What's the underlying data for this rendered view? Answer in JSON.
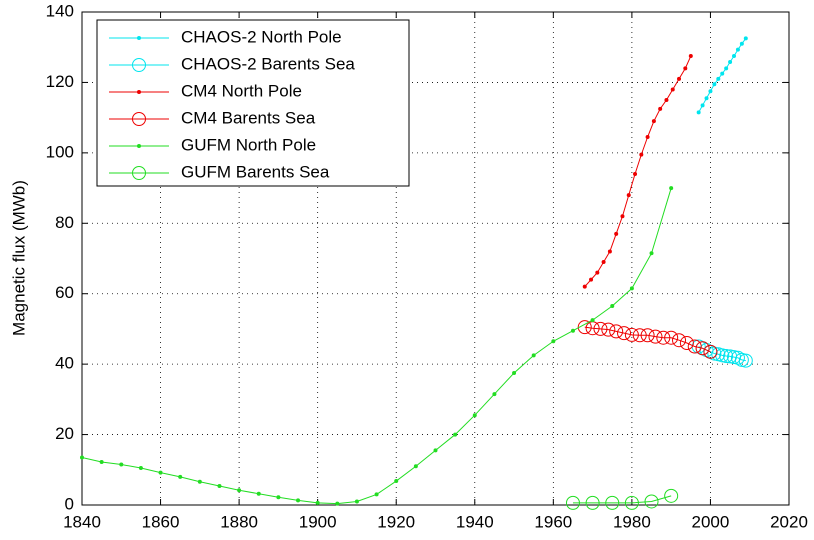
{
  "chart_data": {
    "type": "line",
    "ylabel": "Magnetic flux (MWb)",
    "xlim": [
      1840,
      2020
    ],
    "ylim": [
      0,
      140
    ],
    "xticks": [
      1840,
      1860,
      1880,
      1900,
      1920,
      1940,
      1960,
      1980,
      2000,
      2020
    ],
    "yticks": [
      0,
      20,
      40,
      60,
      80,
      100,
      120,
      140
    ],
    "grid": true,
    "legend": "upper left",
    "series": [
      {
        "name": "CHAOS-2 North Pole",
        "color": "#00e5ee",
        "marker": "dot",
        "x": [
          1997,
          1998,
          1999,
          2000,
          2001,
          2002,
          2003,
          2004,
          2005,
          2006,
          2007,
          2008,
          2009
        ],
        "values": [
          111.5,
          113.5,
          115.5,
          117.5,
          119.5,
          121,
          122.5,
          124,
          125.8,
          127.5,
          129.3,
          131,
          132.5
        ]
      },
      {
        "name": "CHAOS-2 Barents Sea",
        "color": "#00e5ee",
        "marker": "circle",
        "x": [
          1997,
          1998,
          1999,
          2000,
          2001,
          2002,
          2003,
          2004,
          2005,
          2006,
          2007,
          2008,
          2009
        ],
        "values": [
          45,
          44.5,
          44,
          43.5,
          43,
          42.8,
          42.5,
          42.3,
          42.2,
          42,
          41.8,
          41.2,
          41
        ]
      },
      {
        "name": "CM4 North Pole",
        "color": "#ee0000",
        "marker": "dot",
        "x": [
          1968,
          1969.6,
          1971.2,
          1972.8,
          1974.4,
          1976,
          1977.6,
          1979.2,
          1980.8,
          1982.4,
          1984,
          1985.6,
          1987.2,
          1988.8,
          1990.4,
          1992,
          1993.6,
          1995
        ],
        "values": [
          62,
          64,
          66,
          69,
          72,
          77,
          82,
          88,
          94,
          99.5,
          104.5,
          109,
          112.5,
          115,
          118,
          121,
          124,
          127.5
        ]
      },
      {
        "name": "CM4 Barents Sea",
        "color": "#ee0000",
        "marker": "circle",
        "x": [
          1968,
          1970,
          1972,
          1974,
          1976,
          1978,
          1980,
          1982,
          1984,
          1986,
          1988,
          1990,
          1992,
          1994,
          1996,
          1998,
          2000
        ],
        "values": [
          50.5,
          50.2,
          50,
          49.8,
          49.3,
          48.8,
          48.3,
          48.2,
          48.2,
          47.8,
          47.5,
          47.5,
          46.8,
          46,
          45,
          44.5,
          43.5
        ]
      },
      {
        "name": "GUFM North Pole",
        "color": "#22dd22",
        "marker": "dot",
        "x": [
          1840,
          1845,
          1850,
          1855,
          1860,
          1865,
          1870,
          1875,
          1880,
          1885,
          1890,
          1895,
          1900,
          1905,
          1910,
          1915,
          1920,
          1925,
          1930,
          1935,
          1940,
          1945,
          1950,
          1955,
          1960,
          1965,
          1970,
          1975,
          1980,
          1985,
          1990
        ],
        "values": [
          13.5,
          12.2,
          11.5,
          10.5,
          9.2,
          8,
          6.6,
          5.4,
          4.2,
          3.2,
          2.2,
          1.3,
          0.6,
          0.4,
          1,
          3,
          6.8,
          11,
          15.5,
          20,
          25.5,
          31.5,
          37.5,
          42.5,
          46.5,
          49.5,
          52.5,
          56.5,
          61.5,
          71.5,
          90
        ]
      },
      {
        "name": "GUFM Barents Sea",
        "color": "#22dd22",
        "marker": "circle",
        "x": [
          1965,
          1970,
          1975,
          1980,
          1985,
          1990
        ],
        "values": [
          0.6,
          0.6,
          0.6,
          0.6,
          1.0,
          2.6
        ]
      }
    ]
  }
}
